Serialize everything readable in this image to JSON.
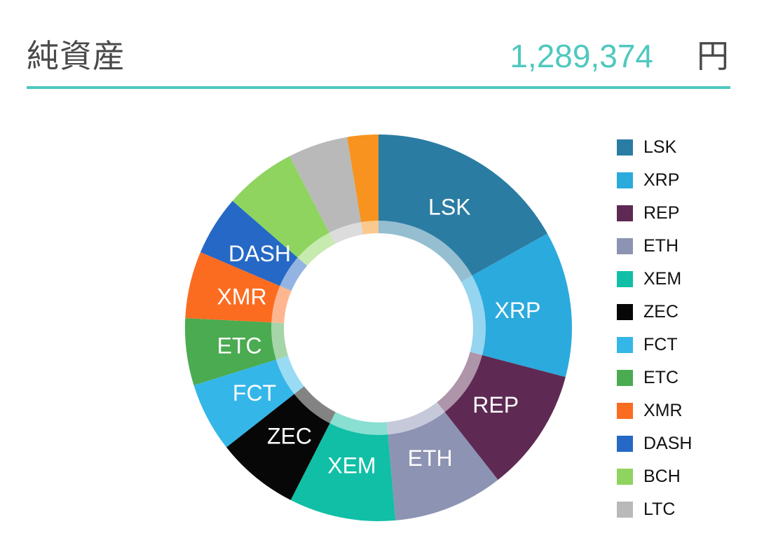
{
  "header": {
    "title": "純資産",
    "value": "1,289,374",
    "currency": "円",
    "accent_color": "#4fc8bf"
  },
  "chart_data": {
    "type": "pie",
    "subtype": "donut",
    "title": "",
    "legend_position": "right",
    "start_angle_deg": 0,
    "direction": "clockwise",
    "hole": true,
    "segments": [
      {
        "label": "LSK",
        "value_pct": 16.9,
        "color": "#2b7ca3",
        "label_on_chart": true,
        "in_legend": true
      },
      {
        "label": "XRP",
        "value_pct": 12.2,
        "color": "#2baade",
        "label_on_chart": true,
        "in_legend": true
      },
      {
        "label": "REP",
        "value_pct": 10.3,
        "color": "#5e2a53",
        "label_on_chart": true,
        "in_legend": true
      },
      {
        "label": "ETH",
        "value_pct": 9.2,
        "color": "#8d93b2",
        "label_on_chart": true,
        "in_legend": true
      },
      {
        "label": "XEM",
        "value_pct": 8.9,
        "color": "#10bfa5",
        "label_on_chart": true,
        "in_legend": true
      },
      {
        "label": "ZEC",
        "value_pct": 6.9,
        "color": "#070707",
        "label_on_chart": true,
        "in_legend": true
      },
      {
        "label": "FCT",
        "value_pct": 5.8,
        "color": "#35b6e9",
        "label_on_chart": true,
        "in_legend": true
      },
      {
        "label": "ETC",
        "value_pct": 5.6,
        "color": "#4aab50",
        "label_on_chart": true,
        "in_legend": true
      },
      {
        "label": "XMR",
        "value_pct": 5.6,
        "color": "#fb6c21",
        "label_on_chart": true,
        "in_legend": true
      },
      {
        "label": "DASH",
        "value_pct": 5.0,
        "color": "#2668c5",
        "label_on_chart": true,
        "in_legend": true
      },
      {
        "label": "BCH",
        "value_pct": 6.0,
        "color": "#8ed45f",
        "label_on_chart": false,
        "in_legend": true
      },
      {
        "label": "LTC",
        "value_pct": 5.0,
        "color": "#b9b9b9",
        "label_on_chart": false,
        "in_legend": true
      },
      {
        "label": "",
        "value_pct": 2.6,
        "color": "#f7931e",
        "label_on_chart": false,
        "in_legend": false
      }
    ]
  }
}
